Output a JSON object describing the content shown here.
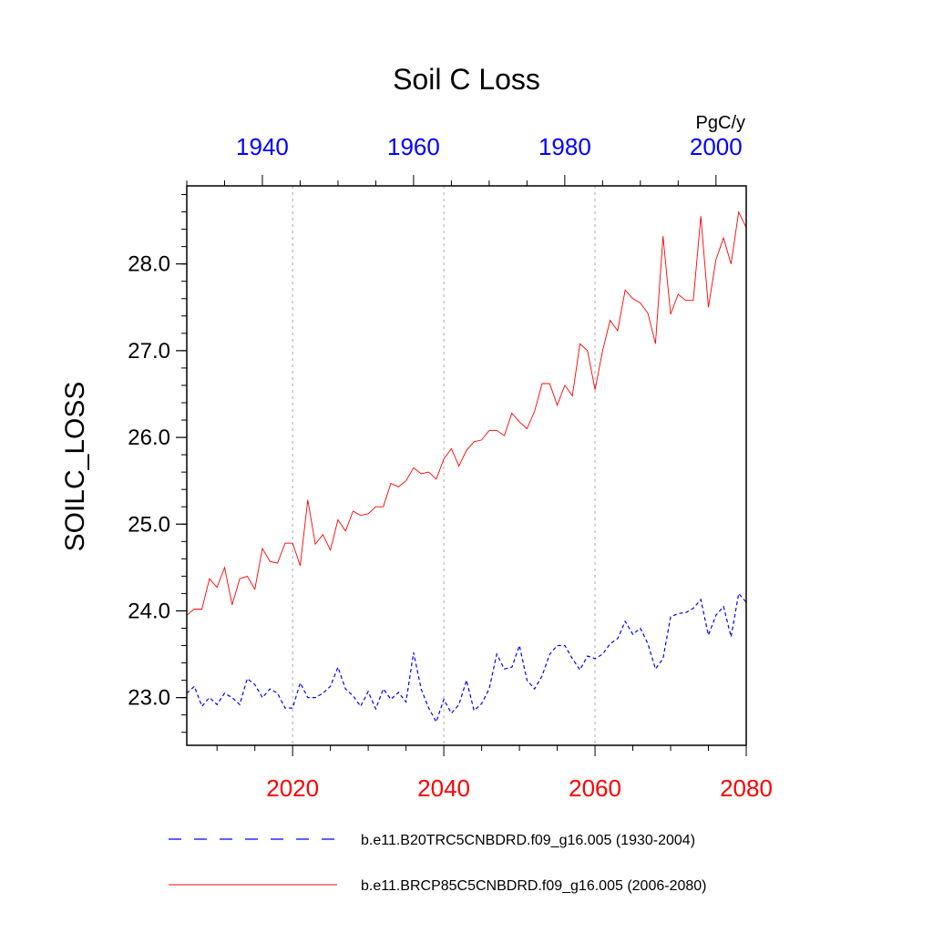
{
  "chart_data": {
    "type": "line",
    "title": "Soil C Loss",
    "units": "PgC/y",
    "ylabel": "SOILC_LOSS",
    "ylim": [
      22.45,
      28.9
    ],
    "yticks": [
      "23.0",
      "24.0",
      "25.0",
      "26.0",
      "27.0",
      "28.0"
    ],
    "yminor_step": 0.2,
    "grid": "vertical dotted at bottom-axis major ticks",
    "bottom_axis": {
      "range": [
        2006,
        2080
      ],
      "color": "#ff0000",
      "ticks": [
        {
          "value": 2020,
          "label": "2020"
        },
        {
          "value": 2040,
          "label": "2040"
        },
        {
          "value": 2060,
          "label": "2060"
        },
        {
          "value": 2080,
          "label": "2080"
        }
      ],
      "minor_step": 5
    },
    "top_axis": {
      "range": [
        1930,
        2004
      ],
      "color": "#0000ff",
      "ticks": [
        {
          "value": 1940,
          "label": "1940"
        },
        {
          "value": 1960,
          "label": "1960"
        },
        {
          "value": 1980,
          "label": "1980"
        },
        {
          "value": 2000,
          "label": "2000"
        }
      ],
      "minor_step": 5
    },
    "legend_position": "bottom",
    "series": [
      {
        "name": "b.e11.B20TRC5CNBDRD.f09_g16.005 (1930-2004)",
        "color": "#0000ff",
        "style": "dashed",
        "axis": "top",
        "x": [
          1930,
          1931,
          1932,
          1933,
          1934,
          1935,
          1936,
          1937,
          1938,
          1939,
          1940,
          1941,
          1942,
          1943,
          1944,
          1945,
          1946,
          1947,
          1948,
          1949,
          1950,
          1951,
          1952,
          1953,
          1954,
          1955,
          1956,
          1957,
          1958,
          1959,
          1960,
          1961,
          1962,
          1963,
          1964,
          1965,
          1966,
          1967,
          1968,
          1969,
          1970,
          1971,
          1972,
          1973,
          1974,
          1975,
          1976,
          1977,
          1978,
          1979,
          1980,
          1981,
          1982,
          1983,
          1984,
          1985,
          1986,
          1987,
          1988,
          1989,
          1990,
          1991,
          1992,
          1993,
          1994,
          1995,
          1996,
          1997,
          1998,
          1999,
          2000,
          2001,
          2002,
          2003,
          2004
        ],
        "values": [
          23.05,
          23.13,
          22.9,
          23.0,
          22.92,
          23.05,
          23.0,
          22.92,
          23.22,
          23.15,
          23.0,
          23.1,
          23.05,
          22.88,
          22.88,
          23.17,
          23.0,
          23.0,
          23.05,
          23.13,
          23.35,
          23.1,
          23.02,
          22.9,
          23.07,
          22.87,
          23.1,
          22.98,
          23.06,
          22.95,
          23.52,
          23.1,
          22.88,
          22.72,
          22.98,
          22.82,
          22.92,
          23.2,
          22.85,
          22.93,
          23.1,
          23.5,
          23.33,
          23.35,
          23.6,
          23.2,
          23.1,
          23.25,
          23.5,
          23.6,
          23.6,
          23.45,
          23.32,
          23.48,
          23.45,
          23.5,
          23.62,
          23.68,
          23.88,
          23.73,
          23.8,
          23.62,
          23.33,
          23.45,
          23.93,
          23.97,
          23.98,
          24.03,
          24.13,
          23.72,
          23.95,
          24.05,
          23.7,
          24.2,
          24.1
        ]
      },
      {
        "name": "b.e11.BRCP85C5CNBDRD.f09_g16.005 (2006-2080)",
        "color": "#ff0000",
        "style": "solid",
        "axis": "bottom",
        "x": [
          2006,
          2007,
          2008,
          2009,
          2010,
          2011,
          2012,
          2013,
          2014,
          2015,
          2016,
          2017,
          2018,
          2019,
          2020,
          2021,
          2022,
          2023,
          2024,
          2025,
          2026,
          2027,
          2028,
          2029,
          2030,
          2031,
          2032,
          2033,
          2034,
          2035,
          2036,
          2037,
          2038,
          2039,
          2040,
          2041,
          2042,
          2043,
          2044,
          2045,
          2046,
          2047,
          2048,
          2049,
          2050,
          2051,
          2052,
          2053,
          2054,
          2055,
          2056,
          2057,
          2058,
          2059,
          2060,
          2061,
          2062,
          2063,
          2064,
          2065,
          2066,
          2067,
          2068,
          2069,
          2070,
          2071,
          2072,
          2073,
          2074,
          2075,
          2076,
          2077,
          2078,
          2079,
          2080
        ],
        "values": [
          23.95,
          24.02,
          24.02,
          24.37,
          24.27,
          24.5,
          24.07,
          24.37,
          24.4,
          24.25,
          24.72,
          24.57,
          24.55,
          24.78,
          24.78,
          24.52,
          25.28,
          24.77,
          24.88,
          24.7,
          25.05,
          24.92,
          25.15,
          25.1,
          25.12,
          25.2,
          25.2,
          25.47,
          25.43,
          25.5,
          25.65,
          25.58,
          25.6,
          25.52,
          25.75,
          25.87,
          25.67,
          25.85,
          25.95,
          25.97,
          26.08,
          26.08,
          26.02,
          26.28,
          26.18,
          26.1,
          26.3,
          26.62,
          26.62,
          26.37,
          26.6,
          26.48,
          27.08,
          27.0,
          26.55,
          27.0,
          27.35,
          27.23,
          27.7,
          27.6,
          27.55,
          27.43,
          27.08,
          28.32,
          27.42,
          27.65,
          27.58,
          27.58,
          28.55,
          27.5,
          28.05,
          28.3,
          28.0,
          28.6,
          28.42
        ]
      }
    ]
  }
}
